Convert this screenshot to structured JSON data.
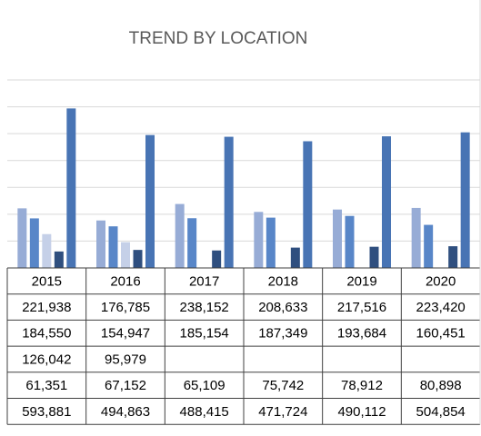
{
  "chart_data": {
    "type": "bar",
    "title": "TREND BY  LOCATION",
    "categories": [
      "2015",
      "2016",
      "2017",
      "2018",
      "2019",
      "2020"
    ],
    "series": [
      {
        "color": "#97acd6",
        "values": [
          221938,
          176785,
          238152,
          208633,
          217516,
          223420
        ],
        "value_labels": [
          "221,938",
          "176,785",
          "238,152",
          "208,633",
          "217,516",
          "223,420"
        ]
      },
      {
        "color": "#5886c8",
        "values": [
          184550,
          154947,
          185154,
          187349,
          193684,
          160451
        ],
        "value_labels": [
          "184,550",
          "154,947",
          "185,154",
          "187,349",
          "193,684",
          "160,451"
        ]
      },
      {
        "color": "#c5d0e8",
        "values": [
          126042,
          95979,
          null,
          null,
          null,
          null
        ],
        "value_labels": [
          "126,042",
          "95,979",
          null,
          null,
          null,
          null
        ]
      },
      {
        "color": "#2f4f7f",
        "values": [
          61351,
          67152,
          65109,
          75742,
          78912,
          80898
        ],
        "value_labels": [
          "61,351",
          "67,152",
          "65,109",
          "75,742",
          "78,912",
          "80,898"
        ]
      },
      {
        "color": "#4874b4",
        "values": [
          593881,
          494863,
          488415,
          471724,
          490112,
          504854
        ],
        "value_labels": [
          "593,881",
          "494,863",
          "488,415",
          "471,724",
          "490,112",
          "504,854"
        ]
      }
    ],
    "ylim": [
      0,
      700000
    ],
    "yticks": [
      0,
      100000,
      200000,
      300000,
      400000,
      500000,
      600000,
      700000
    ],
    "grid": true
  }
}
